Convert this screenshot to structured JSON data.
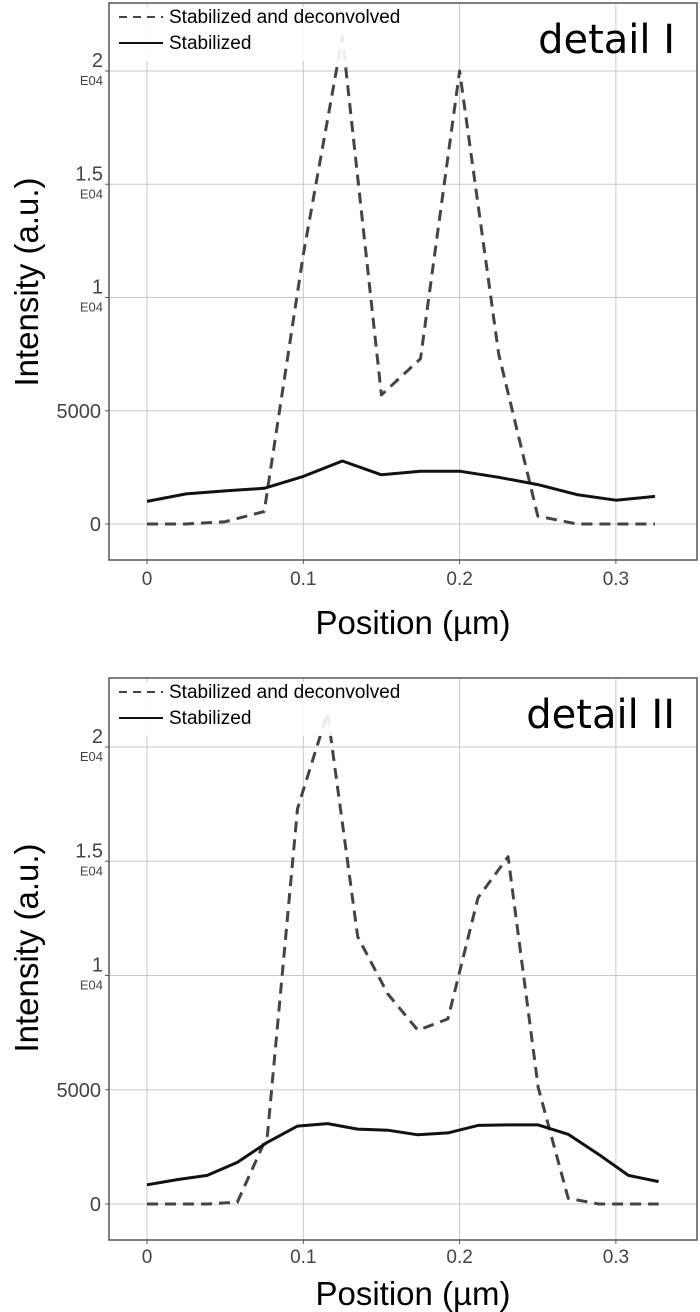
{
  "chart_data": [
    {
      "type": "line",
      "title": "detail I",
      "xlabel": "Position (µm)",
      "ylabel": "Intensity (a.u.)",
      "xlim": [
        -0.025,
        0.35
      ],
      "ylim": [
        -1600,
        23000
      ],
      "grid": true,
      "legend_position": "top-left",
      "x_ticks": [
        {
          "value": 0,
          "label": "0"
        },
        {
          "value": 0.1,
          "label": "0.1"
        },
        {
          "value": 0.2,
          "label": "0.2"
        },
        {
          "value": 0.3,
          "label": "0.3"
        }
      ],
      "y_ticks": [
        {
          "value": 0,
          "label": "0",
          "exp": ""
        },
        {
          "value": 5000,
          "label": "5000",
          "exp": ""
        },
        {
          "value": 10000,
          "label": "1",
          "exp": "E04"
        },
        {
          "value": 15000,
          "label": "1.5",
          "exp": "E04"
        },
        {
          "value": 20000,
          "label": "2",
          "exp": "E04"
        }
      ],
      "x": [
        0,
        0.025,
        0.05,
        0.075,
        0.1,
        0.125,
        0.15,
        0.175,
        0.2,
        0.225,
        0.25,
        0.275,
        0.3,
        0.325
      ],
      "series": [
        {
          "name": "Stabilized and deconvolved",
          "style": "dashed",
          "color": "#444444",
          "values": [
            0,
            0,
            100,
            550,
            11900,
            21500,
            5700,
            7300,
            20000,
            7500,
            350,
            0,
            0,
            0
          ]
        },
        {
          "name": "Stabilized",
          "style": "solid",
          "color": "#111111",
          "values": [
            1000,
            1330,
            1460,
            1575,
            2100,
            2780,
            2170,
            2330,
            2330,
            2060,
            1740,
            1300,
            1050,
            1220
          ]
        }
      ]
    },
    {
      "type": "line",
      "title": "detail II",
      "xlabel": "Position (µm)",
      "ylabel": "Intensity (a.u.)",
      "xlim": [
        -0.025,
        0.35
      ],
      "ylim": [
        -1600,
        23000
      ],
      "grid": true,
      "legend_position": "top-left",
      "x_ticks": [
        {
          "value": 0,
          "label": "0"
        },
        {
          "value": 0.1,
          "label": "0.1"
        },
        {
          "value": 0.2,
          "label": "0.2"
        },
        {
          "value": 0.3,
          "label": "0.3"
        }
      ],
      "y_ticks": [
        {
          "value": 0,
          "label": "0",
          "exp": ""
        },
        {
          "value": 5000,
          "label": "5000",
          "exp": ""
        },
        {
          "value": 10000,
          "label": "1",
          "exp": "E04"
        },
        {
          "value": 15000,
          "label": "1.5",
          "exp": "E04"
        },
        {
          "value": 20000,
          "label": "2",
          "exp": "E04"
        }
      ],
      "x": [
        0,
        0.0193,
        0.0385,
        0.0578,
        0.077,
        0.0963,
        0.1155,
        0.1348,
        0.154,
        0.1733,
        0.1925,
        0.2118,
        0.231,
        0.2503,
        0.2695,
        0.2888,
        0.308,
        0.3273
      ],
      "series": [
        {
          "name": "Stabilized and deconvolved",
          "style": "dashed",
          "color": "#444444",
          "values": [
            0,
            0,
            0,
            80,
            3000,
            17300,
            21500,
            11700,
            9200,
            7600,
            8100,
            13400,
            15200,
            5100,
            250,
            0,
            0,
            0
          ]
        },
        {
          "name": "Stabilized",
          "style": "solid",
          "color": "#111111",
          "values": [
            840,
            1070,
            1250,
            1820,
            2700,
            3410,
            3520,
            3280,
            3230,
            3030,
            3110,
            3440,
            3460,
            3460,
            3050,
            2180,
            1250,
            980
          ]
        }
      ]
    }
  ]
}
